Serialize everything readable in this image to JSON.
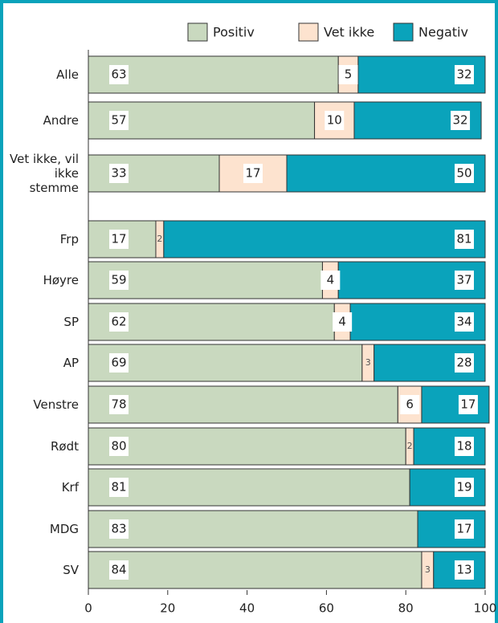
{
  "chart_data": {
    "type": "stacked_barh",
    "categories": [
      "Alle",
      "Andre",
      "Vet ikke, vil ikke stemme",
      "Frp",
      "Høyre",
      "SP",
      "AP",
      "Venstre",
      "Rødt",
      "Krf",
      "MDG",
      "SV"
    ],
    "series": [
      {
        "name": "Positiv",
        "color": "#c9d9bf",
        "values": [
          63,
          57,
          33,
          17,
          59,
          62,
          69,
          78,
          80,
          81,
          83,
          84
        ]
      },
      {
        "name": "Vet ikke",
        "color": "#fde3cf",
        "values": [
          5,
          10,
          17,
          2,
          4,
          4,
          3,
          6,
          2,
          null,
          null,
          3
        ]
      },
      {
        "name": "Negativ",
        "color": "#0aa3bb",
        "values": [
          32,
          32,
          50,
          81,
          37,
          34,
          28,
          17,
          18,
          19,
          17,
          13
        ]
      }
    ],
    "xlim": [
      0,
      100
    ],
    "xticks": [
      0,
      20,
      40,
      60,
      80,
      100
    ],
    "legend": "top-right"
  }
}
